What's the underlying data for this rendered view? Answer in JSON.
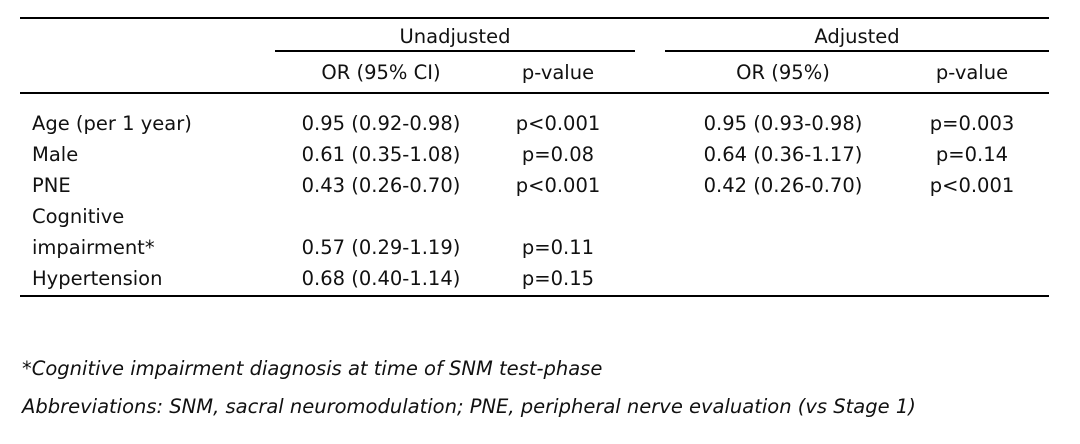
{
  "table": {
    "groups": [
      {
        "label": "Unadjusted"
      },
      {
        "label": "Adjusted"
      }
    ],
    "subheaders": {
      "unadjusted_or": "OR (95% CI)",
      "unadjusted_p": "p-value",
      "adjusted_or": "OR (95%)",
      "adjusted_p": "p-value"
    },
    "rows": [
      {
        "label": "Age (per 1 year)",
        "label_line2": "",
        "u_or": "0.95 (0.92-0.98)",
        "u_p": "p<0.001",
        "a_or": "0.95 (0.93-0.98)",
        "a_p": "p=0.003"
      },
      {
        "label": "Male",
        "label_line2": "",
        "u_or": "0.61 (0.35-1.08)",
        "u_p": "p=0.08",
        "a_or": "0.64 (0.36-1.17)",
        "a_p": "p=0.14"
      },
      {
        "label": "PNE",
        "label_line2": "",
        "u_or": "0.43 (0.26-0.70)",
        "u_p": "p<0.001",
        "a_or": "0.42 (0.26-0.70)",
        "a_p": "p<0.001"
      },
      {
        "label": "Cognitive",
        "label_line2": "impairment*",
        "u_or": "0.57 (0.29-1.19)",
        "u_p": "p=0.11",
        "a_or": "",
        "a_p": ""
      },
      {
        "label": "Hypertension",
        "label_line2": "",
        "u_or": "0.68 (0.40-1.14)",
        "u_p": "p=0.15",
        "a_or": "",
        "a_p": ""
      }
    ]
  },
  "footnotes": {
    "asterisk_note": "*Cognitive impairment diagnosis at time of SNM test-phase",
    "abbreviations": "Abbreviations: SNM, sacral neuromodulation; PNE, peripheral nerve evaluation (vs Stage 1)"
  }
}
